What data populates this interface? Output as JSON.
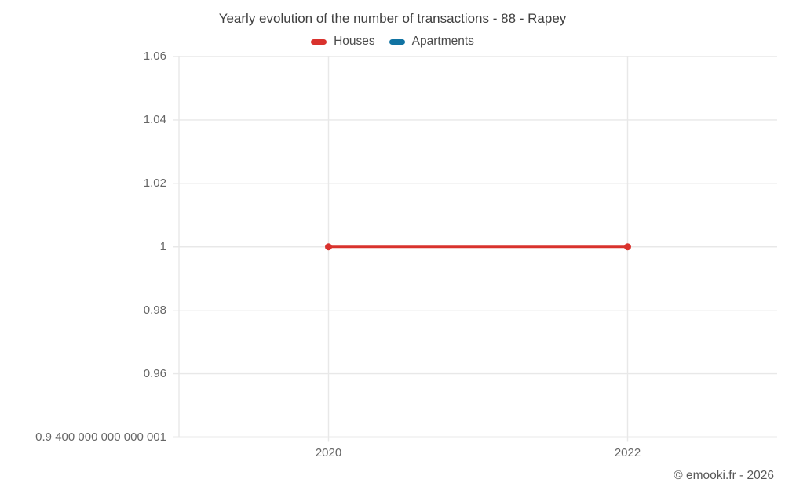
{
  "title": "Yearly evolution of the number of transactions - 88 - Rapey",
  "watermark": "© emooki.fr - 2026",
  "colors": {
    "houses": "#d9322d",
    "apartments": "#1173a2",
    "grid_line": "#e8e8e8",
    "axis_line": "#d4d4d4",
    "title_text": "#404040",
    "legend_text": "#4a4a4a",
    "tick_text": "#666666",
    "watermark_text": "#585858",
    "background": "#ffffff"
  },
  "legend": {
    "items": [
      {
        "label": "Houses",
        "color": "#d9322d"
      },
      {
        "label": "Apartments",
        "color": "#1173a2"
      }
    ]
  },
  "chart_data": {
    "type": "line",
    "title": "Yearly evolution of the number of transactions - 88 - Rapey",
    "xlabel": "",
    "ylabel": "",
    "xlim": [
      2019,
      2023
    ],
    "ylim": [
      0.9400000000000001,
      1.06
    ],
    "grid": true,
    "legend_position": "top",
    "series": [
      {
        "name": "Houses",
        "color": "#d9322d",
        "x": [
          2020,
          2022
        ],
        "values": [
          1,
          1
        ],
        "marker": "circle"
      },
      {
        "name": "Apartments",
        "color": "#1173a2",
        "x": [],
        "values": []
      }
    ],
    "yticks": [
      {
        "value": 1.06,
        "label": "1.06"
      },
      {
        "value": 1.04,
        "label": "1.04"
      },
      {
        "value": 1.02,
        "label": "1.02"
      },
      {
        "value": 1.0,
        "label": "1"
      },
      {
        "value": 0.98,
        "label": "0.98"
      },
      {
        "value": 0.96,
        "label": "0.96"
      },
      {
        "value": 0.9400000000000001,
        "label": "0.9 400 000 000 000 001"
      }
    ],
    "xticks": [
      {
        "value": 2020,
        "label": "2020"
      },
      {
        "value": 2022,
        "label": "2022"
      }
    ]
  }
}
